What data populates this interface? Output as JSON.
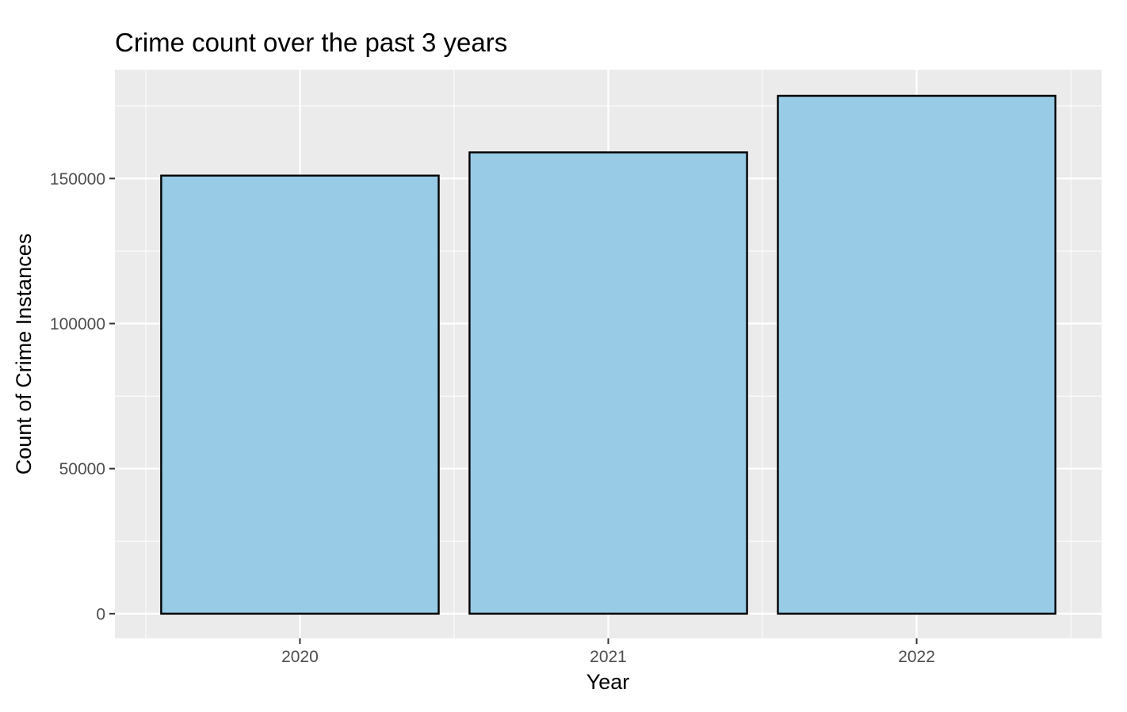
{
  "chart_data": {
    "type": "bar",
    "title": "Crime count over the past 3 years",
    "xlabel": "Year",
    "ylabel": "Count of Crime Instances",
    "categories": [
      "2020",
      "2021",
      "2022"
    ],
    "values": [
      151000,
      159000,
      178500
    ],
    "ylim": [
      -8500,
      187500
    ],
    "yticks": [
      0,
      50000,
      100000,
      150000
    ],
    "ytick_labels": [
      "0",
      "50000",
      "100000",
      "150000"
    ],
    "grid": true,
    "legend": "none",
    "colors": {
      "bar_fill": "#97cbe6",
      "bar_stroke": "#000000",
      "panel_background": "#ebebeb",
      "grid": "#ffffff",
      "tick_label": "#4d4d4d"
    }
  }
}
